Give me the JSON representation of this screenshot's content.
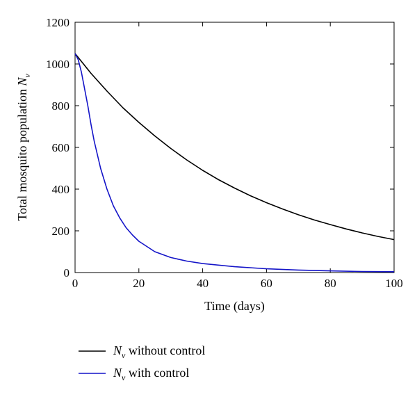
{
  "chart_data": {
    "type": "line",
    "xlabel": "Time (days)",
    "ylabel_prefix": "Total mosquito population ",
    "ylabel_var": "N",
    "ylabel_sub": "v",
    "xlim": [
      0,
      100
    ],
    "ylim": [
      0,
      1200
    ],
    "xticks": [
      0,
      20,
      40,
      60,
      80,
      100
    ],
    "yticks": [
      0,
      200,
      400,
      600,
      800,
      1000,
      1200
    ],
    "grid": false,
    "legend_position": "bottom-outside",
    "series": [
      {
        "legend_var": "N",
        "legend_sub": "v",
        "legend_text": " without control",
        "color": "#000000",
        "x": [
          0,
          5,
          10,
          15,
          20,
          25,
          30,
          35,
          40,
          45,
          50,
          55,
          60,
          65,
          70,
          75,
          80,
          85,
          90,
          95,
          100
        ],
        "values": [
          1050,
          955,
          870,
          790,
          720,
          655,
          595,
          540,
          490,
          445,
          405,
          368,
          335,
          305,
          277,
          252,
          230,
          209,
          190,
          173,
          158
        ]
      },
      {
        "legend_var": "N",
        "legend_sub": "v",
        "legend_text": " with control",
        "color": "#1414c8",
        "x": [
          0,
          1,
          2,
          3,
          4,
          5,
          6,
          8,
          10,
          12,
          14,
          16,
          18,
          20,
          25,
          30,
          35,
          40,
          50,
          60,
          70,
          80,
          90,
          100
        ],
        "values": [
          1050,
          1020,
          960,
          880,
          800,
          710,
          630,
          500,
          400,
          320,
          262,
          215,
          180,
          150,
          100,
          72,
          55,
          43,
          28,
          18,
          12,
          8,
          5,
          4
        ]
      }
    ]
  }
}
